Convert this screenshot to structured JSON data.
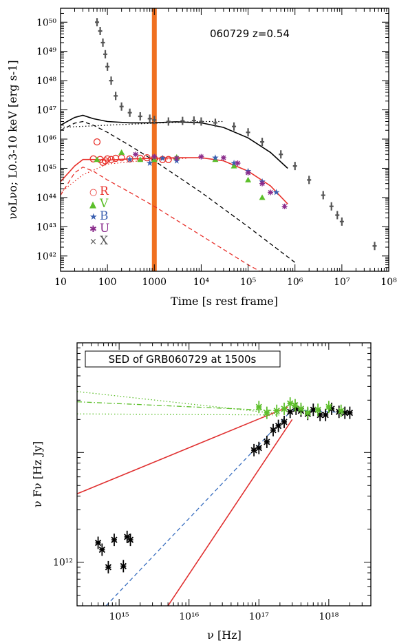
{
  "chart_data": [
    {
      "type": "scatter",
      "annotation": "060729   z=0.54",
      "xlabel": "Time [s rest frame]",
      "ylabel": "νoLνo;  L0.3-10 keV [erg s-1]",
      "xscale": "log",
      "yscale": "log",
      "xlim": [
        10,
        100000000
      ],
      "ylim": [
        3e+41,
        3e+50
      ],
      "x_tick_labels": [
        "10",
        "100",
        "1000",
        "10⁴",
        "10⁵",
        "10⁶",
        "10⁷",
        "10⁸"
      ],
      "y_tick_labels": [
        "10⁴²",
        "10⁴³",
        "10⁴⁴",
        "10⁴⁵",
        "10⁴⁶",
        "10⁴⁷",
        "10⁴⁸",
        "10⁴⁹",
        "10⁵⁰"
      ],
      "legend": [
        {
          "symbol": "○",
          "name": "R",
          "color": "#e8302a"
        },
        {
          "symbol": "▲",
          "name": "V",
          "color": "#5cbf2a"
        },
        {
          "symbol": "★",
          "name": "B",
          "color": "#3a5fb0"
        },
        {
          "symbol": "✱",
          "name": "U",
          "color": "#8a2c8c"
        },
        {
          "symbol": "×",
          "name": "X",
          "color": "#555555"
        }
      ],
      "legend_position": "lower-left",
      "vertical_band": {
        "x": 1000,
        "color": "#f07020"
      },
      "series": [
        {
          "key": "X",
          "style": "gray-points",
          "color": "#555555",
          "x": [
            60,
            70,
            80,
            90,
            100,
            120,
            150,
            200,
            300,
            500,
            800,
            1000,
            2000,
            4000,
            7000,
            10000,
            20000,
            50000,
            100000,
            200000,
            500000,
            1000000,
            2000000,
            4000000,
            6000000,
            8000000,
            10000000,
            50000000
          ],
          "y": [
            1e+50,
            5e+49,
            2e+49,
            8e+48,
            3e+48,
            1e+48,
            3e+47,
            1.3e+47,
            8e+46,
            6e+46,
            5e+46,
            4.5e+46,
            4e+46,
            4.2e+46,
            4.3e+46,
            4e+46,
            3.6e+46,
            2.7e+46,
            1.7e+46,
            8e+45,
            3e+45,
            1.2e+45,
            4e+44,
            1.2e+44,
            5e+43,
            2.5e+43,
            1.5e+43,
            2.2e+42
          ]
        },
        {
          "key": "R",
          "style": "open-circles",
          "color": "#e8302a",
          "x": [
            50,
            60,
            70,
            80,
            90,
            100,
            120,
            150,
            200,
            300,
            500,
            700,
            1000,
            1500,
            2000
          ],
          "y": [
            2.1e+45,
            8e+45,
            2e+45,
            1.6e+45,
            1.8e+45,
            2.1e+45,
            2e+45,
            2.2e+45,
            2.3e+45,
            2.1e+45,
            2.2e+45,
            2.3e+45,
            2.1e+45,
            2e+45,
            2e+45
          ]
        },
        {
          "key": "V",
          "style": "triangles",
          "color": "#5cbf2a",
          "x": [
            60,
            200,
            500,
            1000,
            3000,
            20000,
            50000,
            100000,
            200000
          ],
          "y": [
            2e+45,
            3.5e+45,
            2e+45,
            2e+45,
            2.4e+45,
            2e+45,
            1.2e+45,
            4e+44,
            1e+44
          ]
        },
        {
          "key": "B",
          "style": "stars",
          "color": "#3a5fb0",
          "x": [
            300,
            800,
            1500,
            3000,
            20000,
            50000,
            100000,
            200000,
            400000
          ],
          "y": [
            2e+45,
            1.5e+45,
            2.2e+45,
            1.8e+45,
            2.3e+45,
            1.5e+45,
            8e+44,
            3.5e+44,
            1.5e+44
          ]
        },
        {
          "key": "U",
          "style": "asterisks",
          "color": "#8a2c8c",
          "x": [
            400,
            1000,
            3000,
            10000,
            30000,
            60000,
            100000,
            200000,
            300000,
            600000
          ],
          "y": [
            3e+45,
            2.5e+45,
            2.2e+45,
            2.5e+45,
            2.3e+45,
            1.5e+45,
            7e+44,
            3e+44,
            1.5e+44,
            5e+43
          ]
        }
      ],
      "model_curves": [
        {
          "style": "solid",
          "color": "#000000",
          "x": [
            10,
            20,
            30,
            50,
            100,
            300,
            1000,
            3000,
            10000,
            30000,
            100000,
            300000,
            700000
          ],
          "y": [
            3e+46,
            5.5e+46,
            6.5e+46,
            5e+46,
            4e+46,
            3.6e+46,
            3.6e+46,
            3.9e+46,
            3.6e+46,
            2.5e+46,
            1.1e+46,
            3.5e+45,
            1e+45
          ]
        },
        {
          "style": "dotted",
          "color": "#000000",
          "x": [
            10,
            100,
            1000,
            10000,
            30000
          ],
          "y": [
            2.5e+46,
            3e+46,
            3.5e+46,
            4e+46,
            4e+46
          ]
        },
        {
          "style": "dashed",
          "color": "#000000",
          "x": [
            10,
            20,
            30,
            50,
            100,
            300,
            1000,
            10000,
            100000,
            1000000
          ],
          "y": [
            2e+46,
            3.5e+46,
            4e+46,
            3e+46,
            1.7e+46,
            6e+45,
            1.8e+45,
            1.5e+44,
            1e+43,
            6e+41
          ]
        },
        {
          "style": "solid",
          "color": "#e8302a",
          "x": [
            10,
            20,
            30,
            50,
            100,
            300,
            1000,
            3000,
            10000,
            30000,
            100000,
            300000,
            700000
          ],
          "y": [
            3.5e+44,
            1.2e+45,
            2e+45,
            2e+45,
            1.9e+45,
            2.1e+45,
            2.2e+45,
            2.3e+45,
            2.3e+45,
            1.8e+45,
            8e+44,
            2.5e+44,
            6e+43
          ]
        },
        {
          "style": "dotted",
          "color": "#e8302a",
          "x": [
            10,
            30,
            100,
            1000,
            5000
          ],
          "y": [
            1.5e+44,
            6e+44,
            1.4e+45,
            2e+45,
            2.2e+45
          ]
        },
        {
          "style": "dashed",
          "color": "#e8302a",
          "x": [
            10,
            20,
            30,
            50,
            100,
            300,
            1000,
            10000,
            100000,
            500000
          ],
          "y": [
            1.2e+44,
            7e+44,
            1.1e+45,
            8e+44,
            4e+44,
            1.5e+44,
            5e+43,
            5e+42,
            5e+41,
            1.2e+41
          ]
        }
      ]
    },
    {
      "type": "scatter",
      "title": "SED of GRB060729 at 1500s",
      "xlabel": "ν [Hz]",
      "ylabel": "ν Fν [Hz Jy]",
      "xscale": "log",
      "yscale": "log",
      "xlim": [
        250000000000000.0,
        4e+18
      ],
      "ylim": [
        40000000000.0,
        10000000000000.0
      ],
      "x_tick_labels": [
        "10¹⁵",
        "10¹⁶",
        "10¹⁷",
        "10¹⁸"
      ],
      "y_tick_labels": [
        "10¹²"
      ],
      "series": [
        {
          "key": "optical",
          "style": "black-crosses",
          "color": "#000000",
          "x": [
            500000000000000.0,
            570000000000000.0,
            700000000000000.0,
            850000000000000.0,
            1150000000000000.0,
            1300000000000000.0,
            1450000000000000.0
          ],
          "y": [
            150000000000.0,
            130000000000.0,
            90000000000.0,
            160000000000.0,
            92000000000.0,
            170000000000.0,
            160000000000.0
          ]
        },
        {
          "key": "xray",
          "style": "black-crosses",
          "color": "#000000",
          "x": [
            8.5e+16,
            1e+17,
            1.3e+17,
            1.6e+17,
            1.9e+17,
            2.3e+17,
            2.8e+17,
            3.4e+17,
            4e+17,
            5e+17,
            6e+17,
            7.5e+17,
            9e+17,
            1.1e+18,
            1.4e+18,
            1.7e+18,
            2e+18
          ],
          "y": [
            1050000000000.0,
            1100000000000.0,
            1250000000000.0,
            1600000000000.0,
            1750000000000.0,
            1900000000000.0,
            2350000000000.0,
            2500000000000.0,
            2400000000000.0,
            2250000000000.0,
            2450000000000.0,
            2200000000000.0,
            2200000000000.0,
            2500000000000.0,
            2350000000000.0,
            2300000000000.0,
            2300000000000.0
          ]
        },
        {
          "key": "xray-green",
          "style": "green-crosses",
          "color": "#5cbf2a",
          "x": [
            1e+17,
            1.3e+17,
            1.8e+17,
            2.3e+17,
            2.8e+17,
            3.3e+17,
            4e+17,
            5e+17,
            7e+17,
            1e+18,
            1.5e+18
          ],
          "y": [
            2600000000000.0,
            2300000000000.0,
            2400000000000.0,
            2500000000000.0,
            2800000000000.0,
            2700000000000.0,
            2500000000000.0,
            2300000000000.0,
            2450000000000.0,
            2600000000000.0,
            2400000000000.0
          ]
        }
      ],
      "model_curves": [
        {
          "style": "dashed",
          "color": "#3a6fc0",
          "x": [
            650000000000000.0,
            3e+17,
            2e+18
          ],
          "y": [
            40000000000.0,
            2450000000000.0,
            2300000000000.0
          ]
        },
        {
          "style": "solid",
          "color": "#e03030",
          "x": [
            250000000000000.0,
            2.6e+17
          ],
          "y": [
            420000000000.0,
            2600000000000.0
          ]
        },
        {
          "style": "solid",
          "color": "#e03030",
          "x": [
            5000000000000000.0,
            3e+17
          ],
          "y": [
            40000000000.0,
            2000000000000.0
          ]
        },
        {
          "style": "dotted",
          "color": "#5cbf2a",
          "x": [
            250000000000000.0,
            2e+17
          ],
          "y": [
            3600000000000.0,
            2250000000000.0
          ]
        },
        {
          "style": "dashdot",
          "color": "#5cbf2a",
          "x": [
            250000000000000.0,
            2e+17
          ],
          "y": [
            2900000000000.0,
            2400000000000.0
          ]
        },
        {
          "style": "dotted",
          "color": "#5cbf2a",
          "x": [
            250000000000000.0,
            2e+17
          ],
          "y": [
            2250000000000.0,
            2200000000000.0
          ]
        }
      ]
    }
  ]
}
